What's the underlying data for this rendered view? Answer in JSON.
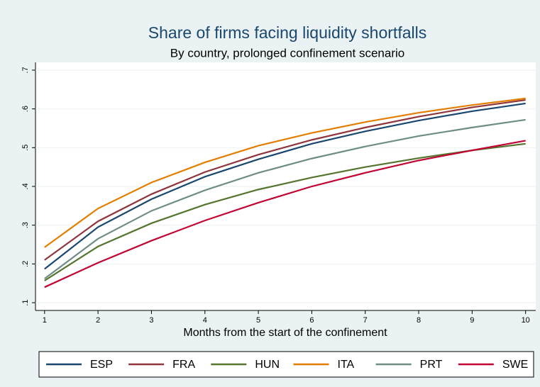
{
  "chart_data": {
    "type": "line",
    "title": "Share of firms facing liquidity shortfalls",
    "subtitle": "By country, prolonged confinement scenario",
    "x_label": "Months from the start of the confinement",
    "x": [
      1,
      2,
      3,
      4,
      5,
      6,
      7,
      8,
      9,
      10
    ],
    "xlim": [
      0.83,
      10.19
    ],
    "xticks": [
      1,
      2,
      3,
      4,
      5,
      6,
      7,
      8,
      9,
      10
    ],
    "ylim": [
      0.08,
      0.72
    ],
    "yticks": [
      {
        "value": 0.1,
        "label": ".1"
      },
      {
        "value": 0.2,
        "label": ".2"
      },
      {
        "value": 0.3,
        "label": ".3"
      },
      {
        "value": 0.4,
        "label": ".4"
      },
      {
        "value": 0.5,
        "label": ".5"
      },
      {
        "value": 0.6,
        "label": ".6"
      },
      {
        "value": 0.7,
        "label": ".7"
      }
    ],
    "grid": true,
    "legend": "bottom",
    "series": [
      {
        "name": "ESP",
        "color": "#1a476f",
        "values": [
          0.187,
          0.295,
          0.367,
          0.425,
          0.47,
          0.51,
          0.542,
          0.57,
          0.594,
          0.614
        ]
      },
      {
        "name": "FRA",
        "color": "#90353b",
        "values": [
          0.21,
          0.31,
          0.38,
          0.437,
          0.482,
          0.52,
          0.552,
          0.58,
          0.604,
          0.623
        ]
      },
      {
        "name": "HUN",
        "color": "#55752f",
        "values": [
          0.157,
          0.245,
          0.305,
          0.353,
          0.392,
          0.423,
          0.45,
          0.473,
          0.493,
          0.51
        ]
      },
      {
        "name": "ITA",
        "color": "#e37e00",
        "values": [
          0.243,
          0.343,
          0.41,
          0.462,
          0.505,
          0.538,
          0.566,
          0.59,
          0.61,
          0.627
        ]
      },
      {
        "name": "PRT",
        "color": "#6e8e84",
        "values": [
          0.162,
          0.265,
          0.337,
          0.39,
          0.435,
          0.472,
          0.503,
          0.53,
          0.552,
          0.572
        ]
      },
      {
        "name": "SWE",
        "color": "#c10534",
        "values": [
          0.14,
          0.203,
          0.26,
          0.312,
          0.358,
          0.4,
          0.435,
          0.467,
          0.493,
          0.518
        ]
      }
    ]
  }
}
